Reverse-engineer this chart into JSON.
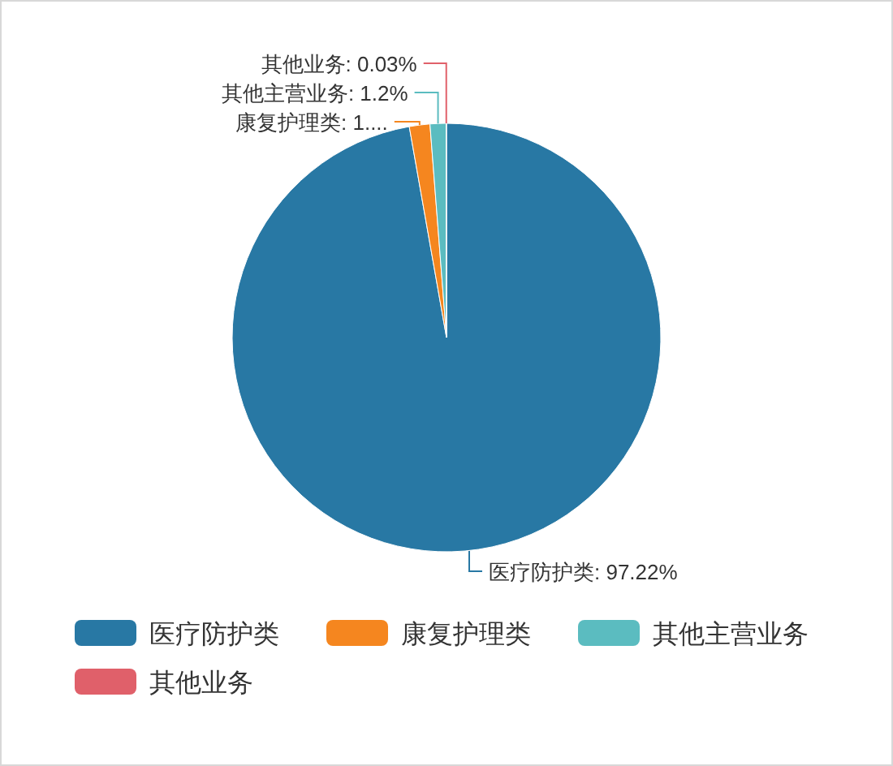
{
  "chart_data": {
    "type": "pie",
    "categories": [
      "医疗防护类",
      "康复护理类",
      "其他主营业务",
      "其他业务"
    ],
    "values": [
      97.22,
      1.55,
      1.2,
      0.03
    ],
    "colors": [
      "#2878a4",
      "#f5861f",
      "#5bbcc0",
      "#e0606a"
    ],
    "value_labels": [
      "医疗防护类: 97.22%",
      "康复护理类: 1....",
      "其他主营业务: 1.2%",
      "其他业务: 0.03%"
    ],
    "legend": "bottom left"
  }
}
